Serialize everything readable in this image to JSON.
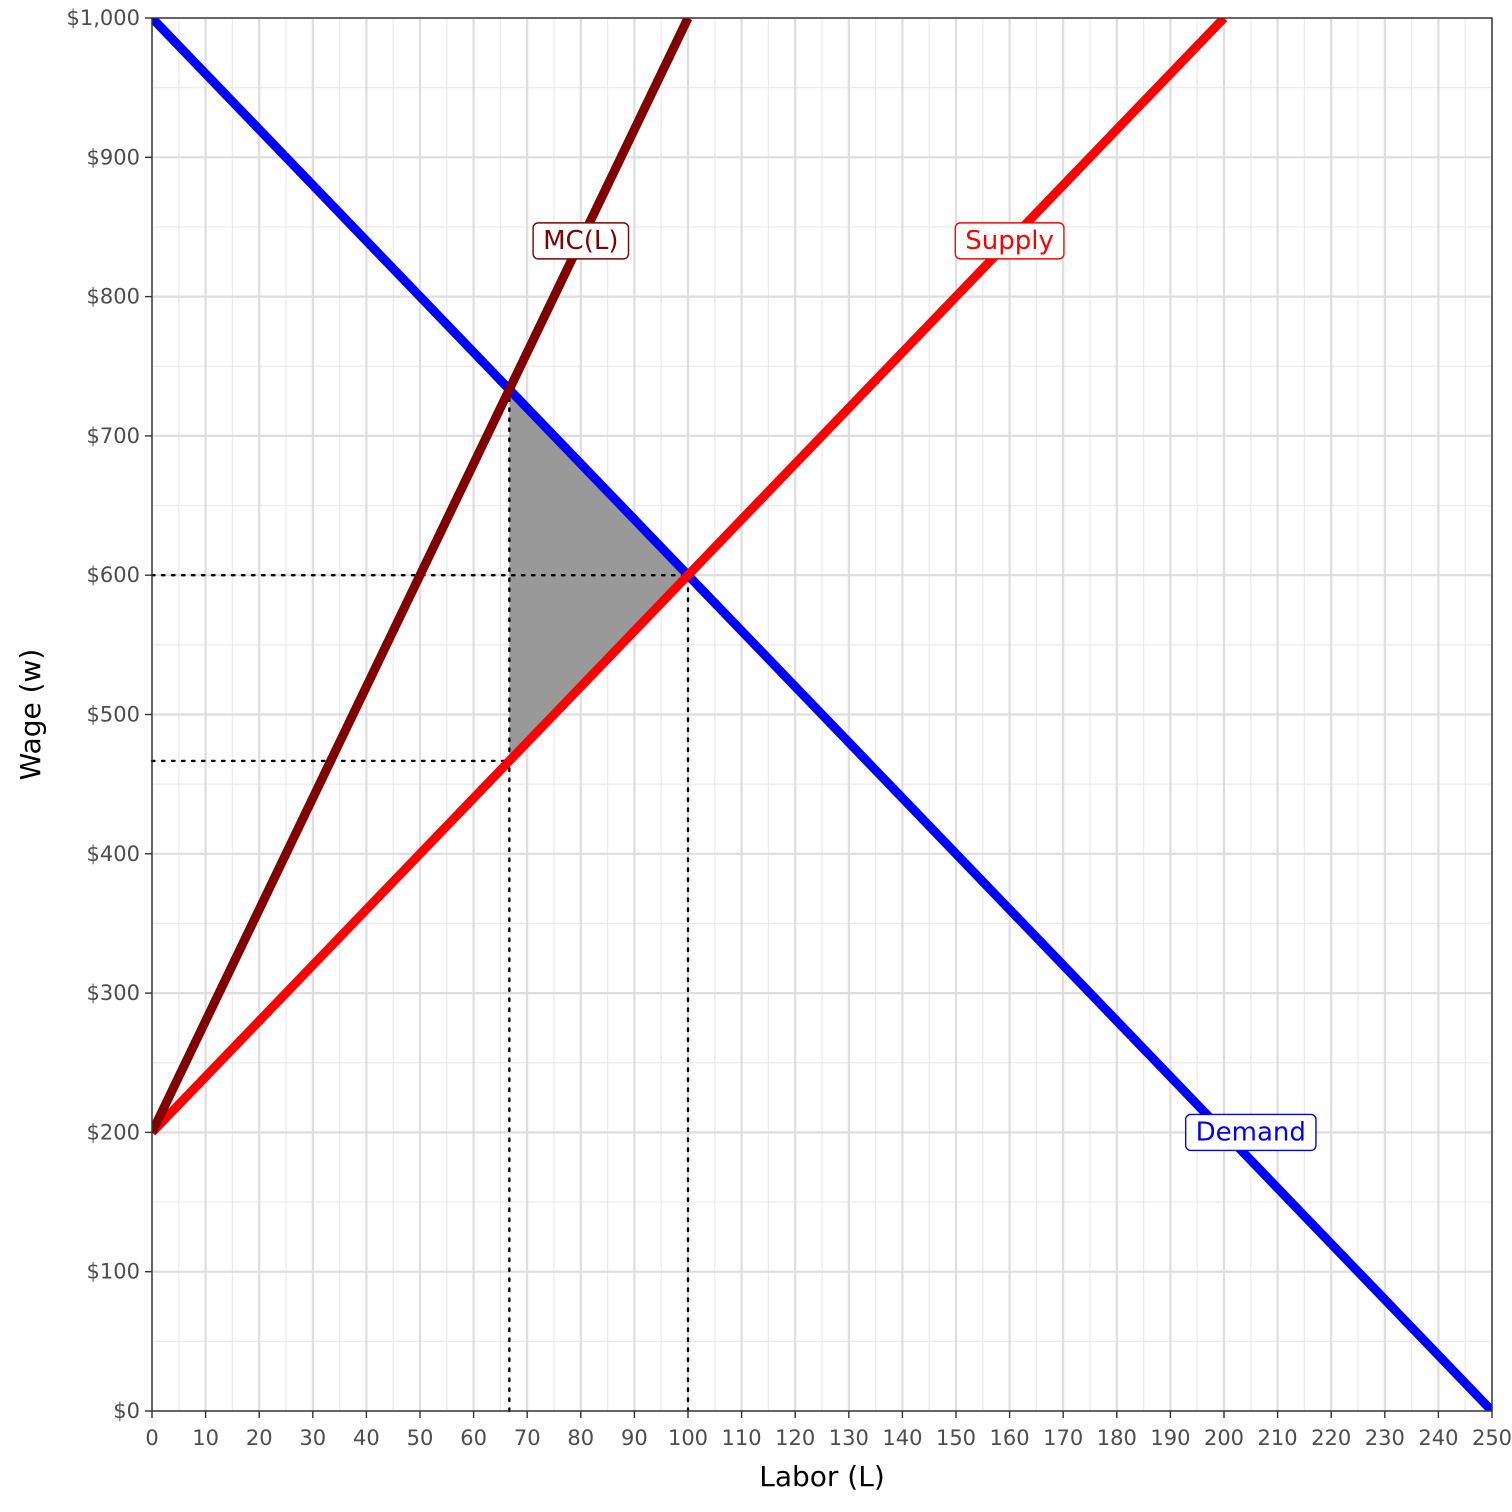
{
  "chart_data": {
    "type": "line",
    "xlabel": "Labor (L)",
    "ylabel": "Wage (w)",
    "xlim": [
      0,
      250
    ],
    "ylim": [
      0,
      1000
    ],
    "x_ticks": [
      0,
      10,
      20,
      30,
      40,
      50,
      60,
      70,
      80,
      90,
      100,
      110,
      120,
      130,
      140,
      150,
      160,
      170,
      180,
      190,
      200,
      210,
      220,
      230,
      240,
      250
    ],
    "y_ticks": [
      0,
      100,
      200,
      300,
      400,
      500,
      600,
      700,
      800,
      900,
      1000
    ],
    "y_tick_labels": [
      "$0",
      "$100",
      "$200",
      "$300",
      "$400",
      "$500",
      "$600",
      "$700",
      "$800",
      "$900",
      "$1,000"
    ],
    "grid": true,
    "series": [
      {
        "name": "Demand",
        "color": "#0000ff",
        "x": [
          0,
          250
        ],
        "y": [
          1000,
          0
        ]
      },
      {
        "name": "Supply",
        "color": "#ff0000",
        "x": [
          0,
          200
        ],
        "y": [
          200,
          1000
        ]
      },
      {
        "name": "MC(L)",
        "color": "#800000",
        "x": [
          0,
          100
        ],
        "y": [
          200,
          1000
        ]
      }
    ],
    "curve_labels": [
      {
        "text": "MC(L)",
        "x": 80,
        "y": 840,
        "color": "#800000"
      },
      {
        "text": "Supply",
        "x": 160,
        "y": 840,
        "color": "#ff0000"
      },
      {
        "text": "Demand",
        "x": 205,
        "y": 200,
        "color": "#0000ff"
      }
    ],
    "guides": [
      {
        "orientation": "h",
        "y": 600,
        "x_from": 0,
        "x_to": 100
      },
      {
        "orientation": "h",
        "y": 466.67,
        "x_from": 0,
        "x_to": 66.67
      },
      {
        "orientation": "v",
        "x": 66.67,
        "y_from": 0,
        "y_to": 733.33
      },
      {
        "orientation": "v",
        "x": 100,
        "y_from": 0,
        "y_to": 600
      }
    ],
    "shaded_region": {
      "color": "#999999",
      "points": [
        [
          66.67,
          733.33
        ],
        [
          100,
          600
        ],
        [
          66.67,
          466.67
        ]
      ]
    }
  }
}
